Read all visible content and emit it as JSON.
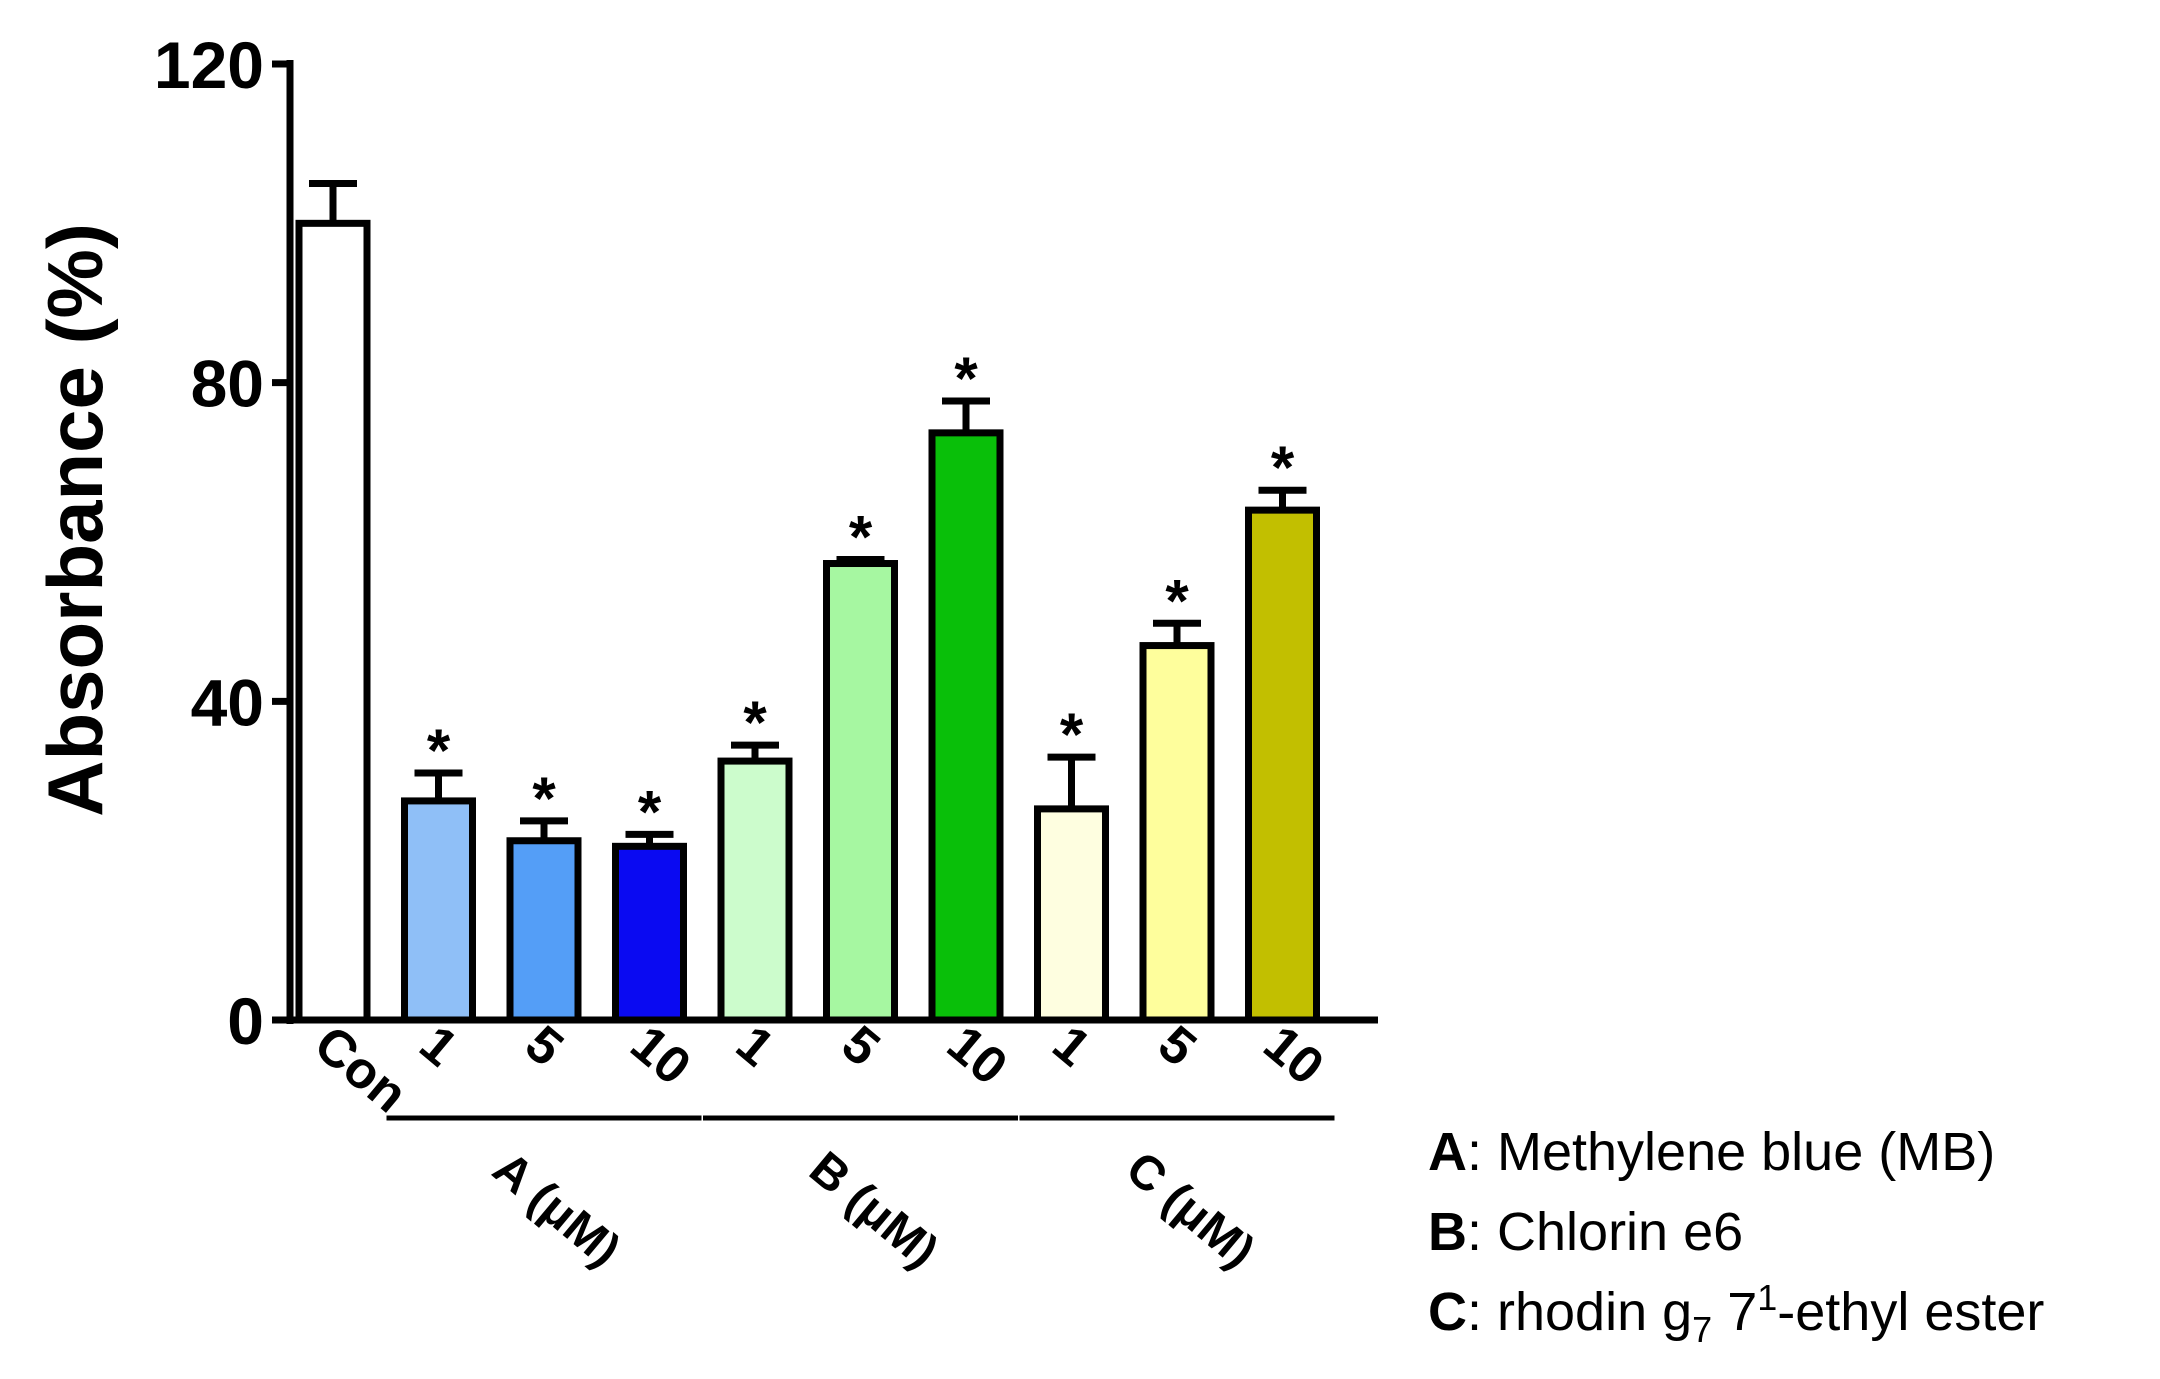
{
  "chart_data": {
    "type": "bar",
    "title": "",
    "xlabel": "",
    "ylabel": "Absorbance (%)",
    "ylim": [
      0,
      120
    ],
    "yticks": [
      "0",
      "40",
      "80",
      "120"
    ],
    "grid": false,
    "categories": [
      "Con",
      "1",
      "5",
      "10",
      "1",
      "5",
      "10",
      "1",
      "5",
      "10"
    ],
    "values": [
      100,
      27.5,
      22.5,
      21.8,
      32.5,
      57.3,
      73.7,
      26.5,
      47,
      64
    ],
    "errors": [
      5,
      3.5,
      2.5,
      1.5,
      2,
      0.5,
      4,
      6.5,
      2.8,
      2.5
    ],
    "colors": [
      "#ffffff",
      "#8fbff7",
      "#549ef7",
      "#0a0af2",
      "#ccfccc",
      "#a6f7a1",
      "#09bf09",
      "#fefee0",
      "#fefe9c",
      "#c2bf00"
    ],
    "significance": [
      "",
      "*",
      "*",
      "*",
      "*",
      "*",
      "*",
      "*",
      "*",
      "*"
    ],
    "groups": [
      {
        "label": "A (μM)",
        "range": [
          1,
          3
        ]
      },
      {
        "label": "B (μM)",
        "range": [
          4,
          6
        ]
      },
      {
        "label": "C (μM)",
        "range": [
          7,
          9
        ]
      }
    ],
    "legend": [
      {
        "key": "A",
        "text": ": Methylene blue (MB)"
      },
      {
        "key": "B",
        "text": ": Chlorin e6"
      },
      {
        "key": "C",
        "text": ": rhodin g",
        "sub": "7",
        "tail_sup": "1",
        "tail": "-ethyl ester",
        "tail_pre": " 7"
      }
    ]
  }
}
